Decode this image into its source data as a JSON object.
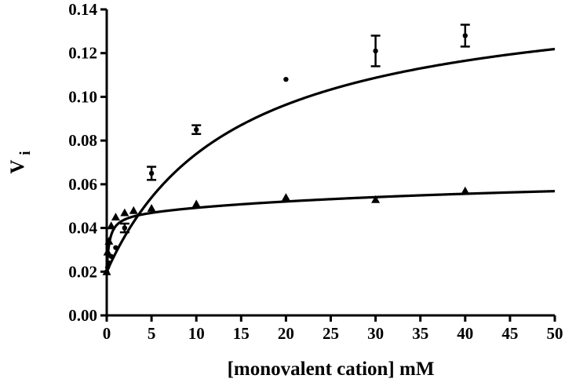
{
  "chart_data": {
    "type": "scatter",
    "title": "",
    "xlabel": "[monovalent cation] mM",
    "ylabel": "V",
    "ylabel_subscript": "i",
    "xlim": [
      0,
      50
    ],
    "ylim": [
      0,
      0.14
    ],
    "xticks": [
      0,
      5,
      10,
      15,
      20,
      25,
      30,
      35,
      40,
      45,
      50
    ],
    "yticks": [
      0.0,
      0.02,
      0.04,
      0.06,
      0.08,
      0.1,
      0.12,
      0.14
    ],
    "xtick_labels": [
      "0",
      "5",
      "10",
      "15",
      "20",
      "25",
      "30",
      "35",
      "40",
      "45",
      "50"
    ],
    "ytick_labels": [
      "0.00",
      "0.02",
      "0.04",
      "0.06",
      "0.08",
      "0.10",
      "0.12",
      "0.14"
    ],
    "grid": false,
    "legend": "none",
    "colors": {
      "ink": "#000000",
      "background": "#ffffff"
    },
    "series": [
      {
        "marker": "circle",
        "x": [
          0,
          0.1,
          0.25,
          0.5,
          1,
          2,
          5,
          10,
          20,
          30,
          40
        ],
        "y": [
          0.02,
          0.022,
          0.024,
          0.027,
          0.031,
          0.04,
          0.065,
          0.085,
          0.108,
          0.121,
          0.128
        ],
        "error": [
          0,
          0,
          0,
          0,
          0,
          0.002,
          0.003,
          0.002,
          0,
          0.007,
          0.005
        ],
        "fit": {
          "vmax": 0.151,
          "km": 14.3,
          "v0": 0.02
        }
      },
      {
        "marker": "triangle",
        "x": [
          0,
          0.1,
          0.25,
          0.5,
          1,
          2,
          3,
          5,
          10,
          20,
          30,
          40
        ],
        "y": [
          0.02,
          0.029,
          0.034,
          0.041,
          0.045,
          0.047,
          0.048,
          0.049,
          0.051,
          0.054,
          0.053,
          0.057
        ],
        "error": [
          0,
          0,
          0,
          0,
          0,
          0,
          0,
          0,
          0,
          0,
          0,
          0
        ],
        "fit": {
          "fast_amp": 0.0265,
          "fast_k": 0.3,
          "slow_amp": 0.021,
          "slow_k": 50
        }
      }
    ]
  }
}
